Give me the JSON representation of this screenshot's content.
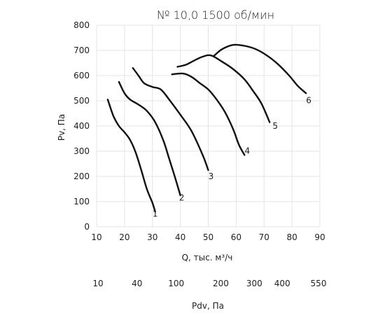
{
  "chart_data": {
    "type": "line",
    "title": "№ 10,0 1500 об/мин",
    "xlabel": "Q, тыс. м³/ч",
    "ylabel": "Pv, Па",
    "secondary_xlabel": "Pdv, Па",
    "xlim": [
      10,
      90
    ],
    "ylim": [
      0,
      800
    ],
    "x_ticks": [
      "10",
      "20",
      "30",
      "40",
      "50",
      "60",
      "70",
      "80",
      "90"
    ],
    "y_ticks": [
      "0",
      "100",
      "200",
      "300",
      "400",
      "500",
      "600",
      "700",
      "800"
    ],
    "grid": true,
    "secondary_axis": [
      {
        "label": "10",
        "q": 10.5
      },
      {
        "label": "40",
        "q": 24.5
      },
      {
        "label": "100",
        "q": 38.5
      },
      {
        "label": "200",
        "q": 54.5
      },
      {
        "label": "300",
        "q": 66.5
      },
      {
        "label": "400",
        "q": 76.5
      },
      {
        "label": "550",
        "q": 89.5
      }
    ],
    "series": [
      {
        "name": "1",
        "points": [
          [
            14,
            505
          ],
          [
            16,
            440
          ],
          [
            18,
            400
          ],
          [
            20,
            375
          ],
          [
            22,
            345
          ],
          [
            24,
            295
          ],
          [
            26,
            225
          ],
          [
            28,
            150
          ],
          [
            30,
            95
          ],
          [
            31,
            60
          ]
        ]
      },
      {
        "name": "2",
        "points": [
          [
            18,
            575
          ],
          [
            20,
            530
          ],
          [
            22,
            505
          ],
          [
            25,
            485
          ],
          [
            28,
            460
          ],
          [
            31,
            415
          ],
          [
            34,
            340
          ],
          [
            36,
            270
          ],
          [
            38,
            200
          ],
          [
            40,
            125
          ]
        ]
      },
      {
        "name": "3",
        "points": [
          [
            23,
            630
          ],
          [
            25,
            600
          ],
          [
            27,
            570
          ],
          [
            30,
            555
          ],
          [
            33,
            545
          ],
          [
            36,
            505
          ],
          [
            40,
            445
          ],
          [
            44,
            380
          ],
          [
            48,
            285
          ],
          [
            50,
            225
          ]
        ]
      },
      {
        "name": "4",
        "points": [
          [
            37,
            605
          ],
          [
            41,
            608
          ],
          [
            44,
            595
          ],
          [
            47,
            570
          ],
          [
            50,
            545
          ],
          [
            53,
            505
          ],
          [
            56,
            455
          ],
          [
            59,
            385
          ],
          [
            61,
            325
          ],
          [
            63,
            285
          ]
        ]
      },
      {
        "name": "5",
        "points": [
          [
            39,
            635
          ],
          [
            42,
            643
          ],
          [
            45,
            660
          ],
          [
            48,
            675
          ],
          [
            51,
            680
          ],
          [
            55,
            655
          ],
          [
            59,
            625
          ],
          [
            63,
            585
          ],
          [
            66,
            540
          ],
          [
            69,
            490
          ],
          [
            72,
            415
          ]
        ]
      },
      {
        "name": "6",
        "points": [
          [
            52,
            678
          ],
          [
            55,
            705
          ],
          [
            59,
            722
          ],
          [
            63,
            718
          ],
          [
            67,
            705
          ],
          [
            71,
            680
          ],
          [
            75,
            645
          ],
          [
            79,
            600
          ],
          [
            82,
            560
          ],
          [
            85,
            530
          ]
        ]
      }
    ],
    "series_labels": [
      {
        "text": "1",
        "x": 31,
        "y": 52
      },
      {
        "text": "2",
        "x": 40.5,
        "y": 115
      },
      {
        "text": "3",
        "x": 51,
        "y": 200
      },
      {
        "text": "4",
        "x": 64,
        "y": 302
      },
      {
        "text": "5",
        "x": 74,
        "y": 400
      },
      {
        "text": "6",
        "x": 86,
        "y": 502
      }
    ]
  }
}
